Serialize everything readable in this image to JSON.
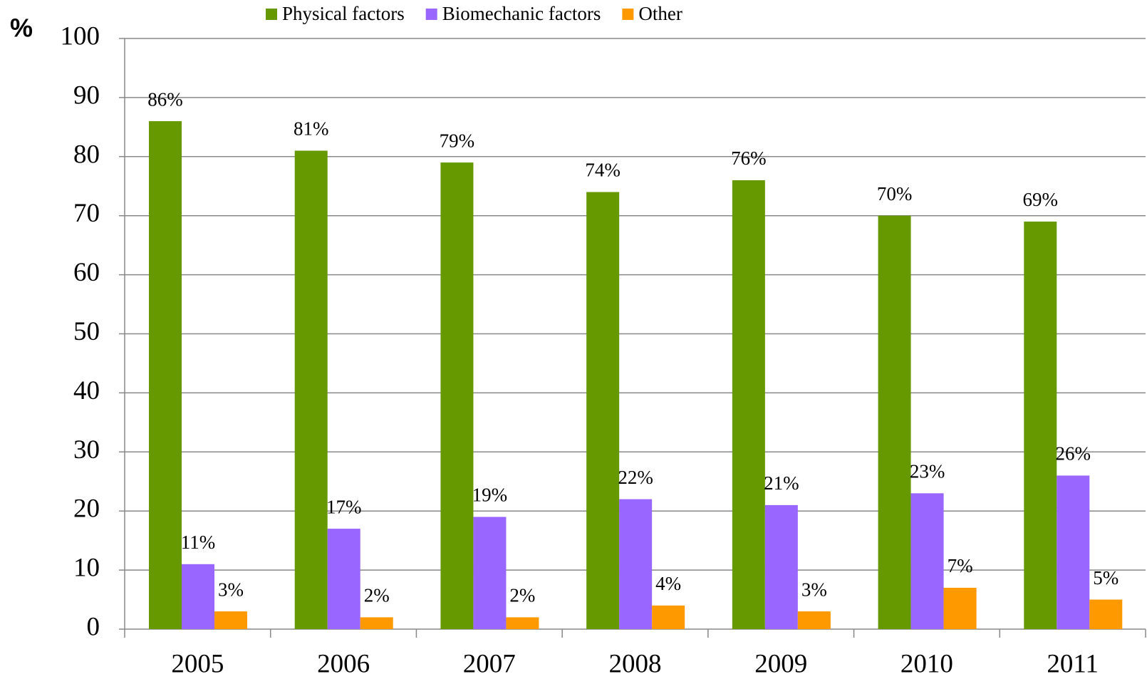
{
  "chart_data": {
    "type": "bar",
    "y_label": "%",
    "categories": [
      "2005",
      "2006",
      "2007",
      "2008",
      "2009",
      "2010",
      "2011"
    ],
    "series": [
      {
        "name": "Physical factors",
        "color": "#669900",
        "values": [
          86,
          81,
          79,
          74,
          76,
          70,
          69
        ],
        "value_labels": [
          "86%",
          "81%",
          "79%",
          "74%",
          "76%",
          "70%",
          "69%"
        ]
      },
      {
        "name": "Biomechanic factors",
        "color": "#9966ff",
        "values": [
          11,
          17,
          19,
          22,
          21,
          23,
          26
        ],
        "value_labels": [
          "11%",
          "17%",
          "19%",
          "22%",
          "21%",
          "23%",
          "26%"
        ]
      },
      {
        "name": "Other",
        "color": "#ff9900",
        "values": [
          3,
          2,
          2,
          4,
          3,
          7,
          5
        ],
        "value_labels": [
          "3%",
          "2%",
          "2%",
          "4%",
          "3%",
          "7%",
          "5%"
        ]
      }
    ],
    "ylim": [
      0,
      100
    ],
    "yticks": [
      0,
      10,
      20,
      30,
      40,
      50,
      60,
      70,
      80,
      90,
      100
    ],
    "grid": true,
    "legend": "top"
  }
}
